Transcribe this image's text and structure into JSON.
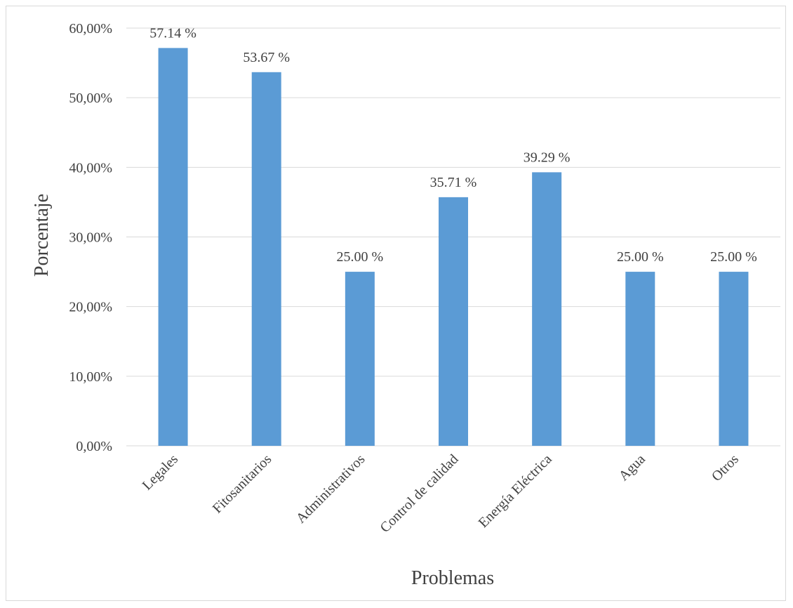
{
  "chart_data": {
    "type": "bar",
    "categories": [
      "Legales",
      "Fitosanitarios",
      "Administrativos",
      "Control de calidad",
      "Energía Eléctrica",
      "Agua",
      "Otros"
    ],
    "values": [
      57.14,
      53.67,
      25.0,
      35.71,
      39.29,
      25.0,
      25.0
    ],
    "data_labels": [
      "57.14 %",
      "53.67 %",
      "25.00 %",
      "35.71 %",
      "39.29 %",
      "25.00 %",
      "25.00 %"
    ],
    "y_ticks": [
      "0,00%",
      "10,00%",
      "20,00%",
      "30,00%",
      "40,00%",
      "50,00%",
      "60,00%"
    ],
    "y_tick_values": [
      0,
      10,
      20,
      30,
      40,
      50,
      60
    ],
    "ylim": [
      0,
      60
    ],
    "xlabel": "Problemas",
    "ylabel": "Porcentaje",
    "grid": true,
    "legend": "none",
    "colors": {
      "bar": "#5b9bd5",
      "grid": "#d9d9d9",
      "text": "#404040"
    }
  }
}
